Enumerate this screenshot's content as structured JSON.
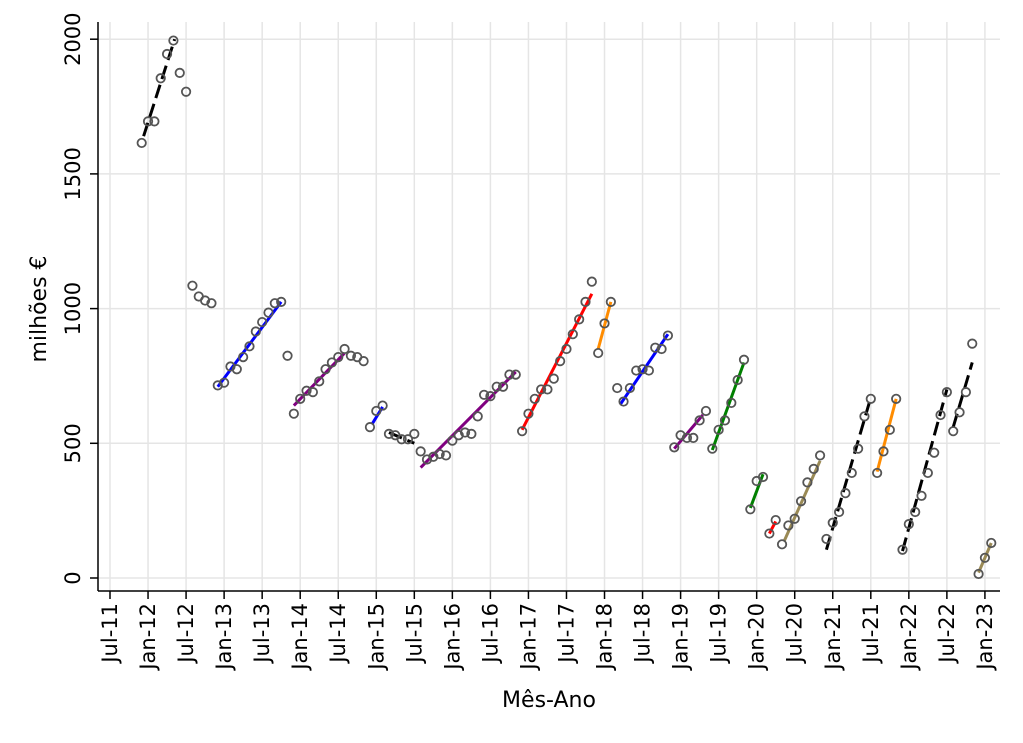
{
  "chart_data": {
    "type": "scatter",
    "title": "",
    "xlabel": "Mês-Ano",
    "ylabel": "milhões €",
    "ylim": [
      -50,
      2050
    ],
    "xlim": [
      -1,
      137
    ],
    "yticks": [
      0,
      500,
      1000,
      1500,
      2000
    ],
    "xticks": [
      {
        "label": "Jul-11",
        "month": 0
      },
      {
        "label": "Jan-12",
        "month": 6
      },
      {
        "label": "Jul-12",
        "month": 12
      },
      {
        "label": "Jan-13",
        "month": 18
      },
      {
        "label": "Jul-13",
        "month": 24
      },
      {
        "label": "Jan-14",
        "month": 30
      },
      {
        "label": "Jul-14",
        "month": 36
      },
      {
        "label": "Jan-15",
        "month": 42
      },
      {
        "label": "Jul-15",
        "month": 48
      },
      {
        "label": "Jan-16",
        "month": 54
      },
      {
        "label": "Jul-16",
        "month": 60
      },
      {
        "label": "Jan-17",
        "month": 66
      },
      {
        "label": "Jul-17",
        "month": 72
      },
      {
        "label": "Jan-18",
        "month": 78
      },
      {
        "label": "Jul-18",
        "month": 84
      },
      {
        "label": "Jan-19",
        "month": 90
      },
      {
        "label": "Jul-19",
        "month": 96
      },
      {
        "label": "Jan-20",
        "month": 102
      },
      {
        "label": "Jul-20",
        "month": 108
      },
      {
        "label": "Jan-21",
        "month": 114
      },
      {
        "label": "Jul-21",
        "month": 120
      },
      {
        "label": "Jan-22",
        "month": 126
      },
      {
        "label": "Jul-22",
        "month": 132
      },
      {
        "label": "Jan-23",
        "month": 138
      }
    ],
    "grid": true,
    "points": [
      {
        "m": 5,
        "v": 1615
      },
      {
        "m": 6,
        "v": 1695
      },
      {
        "m": 7,
        "v": 1695
      },
      {
        "m": 8,
        "v": 1855
      },
      {
        "m": 9,
        "v": 1945
      },
      {
        "m": 10,
        "v": 1995
      },
      {
        "m": 11,
        "v": 1875
      },
      {
        "m": 12,
        "v": 1805
      },
      {
        "m": 13,
        "v": 1085
      },
      {
        "m": 14,
        "v": 1045
      },
      {
        "m": 15,
        "v": 1030
      },
      {
        "m": 16,
        "v": 1020
      },
      {
        "m": 17,
        "v": 715
      },
      {
        "m": 18,
        "v": 725
      },
      {
        "m": 19,
        "v": 785
      },
      {
        "m": 20,
        "v": 775
      },
      {
        "m": 21,
        "v": 820
      },
      {
        "m": 22,
        "v": 860
      },
      {
        "m": 23,
        "v": 915
      },
      {
        "m": 24,
        "v": 950
      },
      {
        "m": 25,
        "v": 985
      },
      {
        "m": 26,
        "v": 1020
      },
      {
        "m": 27,
        "v": 1025
      },
      {
        "m": 28,
        "v": 825
      },
      {
        "m": 29,
        "v": 610
      },
      {
        "m": 30,
        "v": 665
      },
      {
        "m": 31,
        "v": 695
      },
      {
        "m": 32,
        "v": 690
      },
      {
        "m": 33,
        "v": 730
      },
      {
        "m": 34,
        "v": 775
      },
      {
        "m": 35,
        "v": 800
      },
      {
        "m": 36,
        "v": 820
      },
      {
        "m": 37,
        "v": 850
      },
      {
        "m": 38,
        "v": 825
      },
      {
        "m": 39,
        "v": 820
      },
      {
        "m": 40,
        "v": 805
      },
      {
        "m": 41,
        "v": 560
      },
      {
        "m": 42,
        "v": 620
      },
      {
        "m": 43,
        "v": 640
      },
      {
        "m": 44,
        "v": 535
      },
      {
        "m": 45,
        "v": 530
      },
      {
        "m": 46,
        "v": 515
      },
      {
        "m": 47,
        "v": 515
      },
      {
        "m": 48,
        "v": 535
      },
      {
        "m": 49,
        "v": 470
      },
      {
        "m": 50,
        "v": 440
      },
      {
        "m": 51,
        "v": 450
      },
      {
        "m": 52,
        "v": 460
      },
      {
        "m": 53,
        "v": 455
      },
      {
        "m": 54,
        "v": 510
      },
      {
        "m": 55,
        "v": 530
      },
      {
        "m": 56,
        "v": 540
      },
      {
        "m": 57,
        "v": 535
      },
      {
        "m": 58,
        "v": 600
      },
      {
        "m": 59,
        "v": 680
      },
      {
        "m": 60,
        "v": 675
      },
      {
        "m": 61,
        "v": 710
      },
      {
        "m": 62,
        "v": 710
      },
      {
        "m": 63,
        "v": 755
      },
      {
        "m": 64,
        "v": 755
      },
      {
        "m": 65,
        "v": 545
      },
      {
        "m": 66,
        "v": 610
      },
      {
        "m": 67,
        "v": 665
      },
      {
        "m": 68,
        "v": 700
      },
      {
        "m": 69,
        "v": 700
      },
      {
        "m": 70,
        "v": 740
      },
      {
        "m": 71,
        "v": 805
      },
      {
        "m": 72,
        "v": 850
      },
      {
        "m": 73,
        "v": 905
      },
      {
        "m": 74,
        "v": 960
      },
      {
        "m": 75,
        "v": 1025
      },
      {
        "m": 76,
        "v": 1100
      },
      {
        "m": 77,
        "v": 835
      },
      {
        "m": 78,
        "v": 945
      },
      {
        "m": 79,
        "v": 1025
      },
      {
        "m": 80,
        "v": 705
      },
      {
        "m": 81,
        "v": 655
      },
      {
        "m": 82,
        "v": 705
      },
      {
        "m": 83,
        "v": 770
      },
      {
        "m": 84,
        "v": 775
      },
      {
        "m": 85,
        "v": 770
      },
      {
        "m": 86,
        "v": 855
      },
      {
        "m": 87,
        "v": 850
      },
      {
        "m": 88,
        "v": 900
      },
      {
        "m": 89,
        "v": 485
      },
      {
        "m": 90,
        "v": 530
      },
      {
        "m": 91,
        "v": 520
      },
      {
        "m": 92,
        "v": 520
      },
      {
        "m": 93,
        "v": 585
      },
      {
        "m": 94,
        "v": 620
      },
      {
        "m": 95,
        "v": 480
      },
      {
        "m": 96,
        "v": 550
      },
      {
        "m": 97,
        "v": 585
      },
      {
        "m": 98,
        "v": 650
      },
      {
        "m": 99,
        "v": 735
      },
      {
        "m": 100,
        "v": 810
      },
      {
        "m": 101,
        "v": 255
      },
      {
        "m": 102,
        "v": 360
      },
      {
        "m": 103,
        "v": 375
      },
      {
        "m": 104,
        "v": 165
      },
      {
        "m": 105,
        "v": 215
      },
      {
        "m": 106,
        "v": 125
      },
      {
        "m": 107,
        "v": 195
      },
      {
        "m": 108,
        "v": 220
      },
      {
        "m": 109,
        "v": 285
      },
      {
        "m": 110,
        "v": 355
      },
      {
        "m": 111,
        "v": 405
      },
      {
        "m": 112,
        "v": 455
      },
      {
        "m": 113,
        "v": 145
      },
      {
        "m": 114,
        "v": 205
      },
      {
        "m": 115,
        "v": 245
      },
      {
        "m": 116,
        "v": 315
      },
      {
        "m": 117,
        "v": 390
      },
      {
        "m": 118,
        "v": 480
      },
      {
        "m": 119,
        "v": 600
      },
      {
        "m": 120,
        "v": 665
      },
      {
        "m": 121,
        "v": 390
      },
      {
        "m": 122,
        "v": 470
      },
      {
        "m": 123,
        "v": 550
      },
      {
        "m": 124,
        "v": 665
      },
      {
        "m": 125,
        "v": 105
      },
      {
        "m": 126,
        "v": 200
      },
      {
        "m": 127,
        "v": 245
      },
      {
        "m": 128,
        "v": 305
      },
      {
        "m": 129,
        "v": 390
      },
      {
        "m": 130,
        "v": 465
      },
      {
        "m": 131,
        "v": 605
      },
      {
        "m": 132,
        "v": 690
      },
      {
        "m": 133,
        "v": 545
      },
      {
        "m": 134,
        "v": 615
      },
      {
        "m": 135,
        "v": 690
      },
      {
        "m": 136,
        "v": 870
      },
      {
        "m": 137,
        "v": 15
      },
      {
        "m": 138,
        "v": 75
      },
      {
        "m": 139,
        "v": 130
      }
    ],
    "series": [
      {
        "name": "seg-2012",
        "color": "#000000",
        "dash": true,
        "x": [
          5.3,
          10.2
        ],
        "y": [
          1640,
          2000
        ]
      },
      {
        "name": "seg-2013",
        "color": "#0000ff",
        "dash": false,
        "x": [
          17,
          27
        ],
        "y": [
          710,
          1025
        ]
      },
      {
        "name": "seg-2014",
        "color": "#800080",
        "dash": false,
        "x": [
          29,
          37
        ],
        "y": [
          640,
          835
        ]
      },
      {
        "name": "seg-2015a",
        "color": "#0000ff",
        "dash": false,
        "x": [
          41.3,
          43
        ],
        "y": [
          570,
          635
        ]
      },
      {
        "name": "seg-2015b",
        "color": "#000000",
        "dash": true,
        "x": [
          44,
          48
        ],
        "y": [
          540,
          500
        ]
      },
      {
        "name": "seg-2016",
        "color": "#800080",
        "dash": false,
        "x": [
          49,
          64
        ],
        "y": [
          410,
          765
        ]
      },
      {
        "name": "seg-2017",
        "color": "#ff0000",
        "dash": false,
        "x": [
          65,
          76
        ],
        "y": [
          550,
          1055
        ]
      },
      {
        "name": "seg-2018a",
        "color": "#ff8c00",
        "dash": false,
        "x": [
          77,
          79
        ],
        "y": [
          850,
          1025
        ]
      },
      {
        "name": "seg-2018b",
        "color": "#0000ff",
        "dash": false,
        "x": [
          80.5,
          88
        ],
        "y": [
          645,
          905
        ]
      },
      {
        "name": "seg-2019a",
        "color": "#800080",
        "dash": false,
        "x": [
          89,
          93.5
        ],
        "y": [
          480,
          605
        ]
      },
      {
        "name": "seg-2019b",
        "color": "#008000",
        "dash": false,
        "x": [
          95,
          100
        ],
        "y": [
          475,
          800
        ]
      },
      {
        "name": "seg-2020a",
        "color": "#008000",
        "dash": false,
        "x": [
          101,
          103
        ],
        "y": [
          260,
          385
        ]
      },
      {
        "name": "seg-2020b",
        "color": "#ff0000",
        "dash": false,
        "x": [
          104,
          105
        ],
        "y": [
          165,
          210
        ]
      },
      {
        "name": "seg-2020c",
        "color": "#9a8a55",
        "dash": false,
        "x": [
          106.3,
          112
        ],
        "y": [
          135,
          435
        ]
      },
      {
        "name": "seg-2021a",
        "color": "#000000",
        "dash": true,
        "x": [
          113,
          120
        ],
        "y": [
          105,
          670
        ]
      },
      {
        "name": "seg-2021b",
        "color": "#ff8c00",
        "dash": false,
        "x": [
          121,
          124
        ],
        "y": [
          395,
          665
        ]
      },
      {
        "name": "seg-2022a",
        "color": "#000000",
        "dash": true,
        "x": [
          125,
          132
        ],
        "y": [
          100,
          700
        ]
      },
      {
        "name": "seg-2022b",
        "color": "#000000",
        "dash": true,
        "x": [
          133,
          136
        ],
        "y": [
          560,
          800
        ]
      },
      {
        "name": "seg-2023",
        "color": "#9a8a55",
        "dash": false,
        "x": [
          137,
          139
        ],
        "y": [
          20,
          130
        ]
      }
    ]
  },
  "colors": {
    "grid": "#e5e5e5",
    "axis": "#000000",
    "marker": "#555555"
  }
}
